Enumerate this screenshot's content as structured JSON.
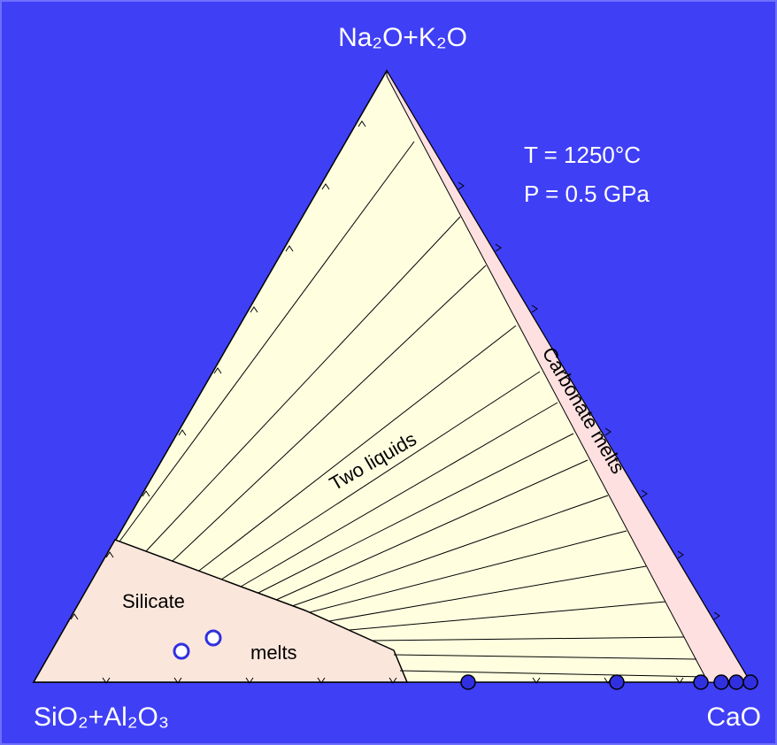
{
  "apex_labels": {
    "top": "Na₂O+K₂O",
    "left": "SiO₂+Al₂O₃",
    "right": "CaO"
  },
  "conditions": {
    "temperature": "T = 1250°C",
    "pressure": "P = 0.5 GPa"
  },
  "regions": {
    "silicate_1": "Silicate",
    "silicate_2": "melts",
    "two_liquids": "Two liquids",
    "carbonate": "Carbonate melts"
  }
}
